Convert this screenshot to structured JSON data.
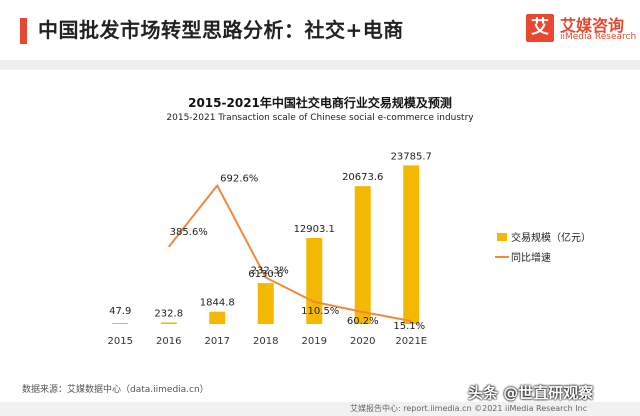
{
  "header": {
    "title": "中国批发市场转型思路分析：社交+电商",
    "logo_mark": "艾",
    "logo_cn": "艾媒咨询",
    "logo_en": "iiMedia Research"
  },
  "chart_data": {
    "type": "bar",
    "title": "2015-2021年中国社交电商行业交易规模及预测",
    "subtitle": "2015-2021 Transaction scale  of Chinese social e-commerce industry",
    "categories": [
      "2015",
      "2016",
      "2017",
      "2018",
      "2019",
      "2020",
      "2021E"
    ],
    "series": [
      {
        "name": "交易规模（亿元）",
        "kind": "bar",
        "color": "#f5b800",
        "values": [
          47.9,
          232.8,
          1844.8,
          6130.6,
          12903.1,
          20673.6,
          23785.7
        ],
        "labels": [
          "47.9",
          "232.8",
          "1844.8",
          "6130.6",
          "12903.1",
          "20673.6",
          "23785.7"
        ]
      },
      {
        "name": "同比增速",
        "kind": "line",
        "color": "#ef8a3c",
        "values": [
          null,
          385.6,
          692.6,
          232.3,
          110.5,
          60.2,
          15.1
        ],
        "labels": [
          "",
          "385.6%",
          "692.6%",
          "232.3%",
          "110.5%",
          "60.2%",
          "15.1%"
        ]
      }
    ],
    "ylim": [
      0,
      24000
    ],
    "y2lim": [
      0,
      800
    ],
    "legend": "right"
  },
  "footer": {
    "source": "数据来源：艾媒数据中心（data.iimedia.cn）",
    "strip": "艾媒报告中心: report.iimedia.cn  ©2021  iiMedia Research  Inc",
    "watermark": "头条 @世直研观察"
  }
}
